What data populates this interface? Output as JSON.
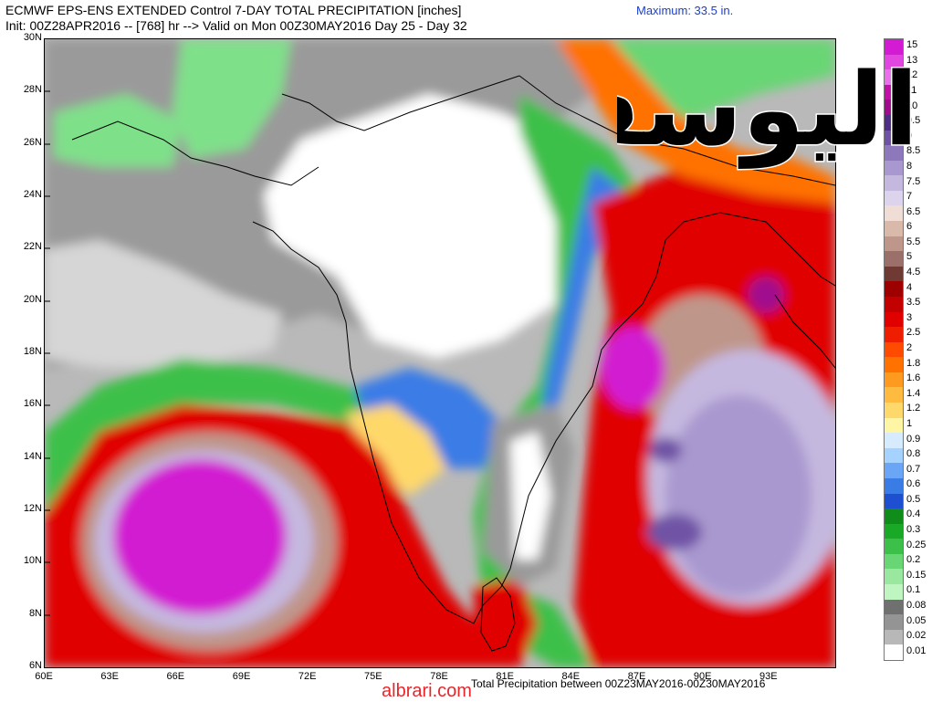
{
  "header": {
    "title_line1": "ECMWF EPS-ENS EXTENDED Control 7-DAY TOTAL PRECIPITATION [inches]",
    "title_line2": "Init: 00Z28APR2016 -- [768] hr --> Valid on Mon 00Z30MAY2016  Day 25 - Day 32",
    "maximum": "Maximum: 33.5 in."
  },
  "map": {
    "latitude_labels": [
      "30N",
      "28N",
      "26N",
      "24N",
      "22N",
      "20N",
      "18N",
      "16N",
      "14N",
      "12N",
      "10N",
      "8N",
      "6N"
    ],
    "latitude_values": [
      30,
      28,
      26,
      24,
      22,
      20,
      18,
      16,
      14,
      12,
      10,
      8,
      6
    ],
    "longitude_labels": [
      "60E",
      "63E",
      "66E",
      "69E",
      "72E",
      "75E",
      "78E",
      "81E",
      "84E",
      "87E",
      "90E",
      "93E"
    ],
    "longitude_values": [
      60,
      63,
      66,
      69,
      72,
      75,
      78,
      81,
      84,
      87,
      90,
      93
    ],
    "extent": {
      "lon_min": 60,
      "lon_max": 96,
      "lat_min": 6,
      "lat_max": 30
    },
    "bottom_note": "Total Precipitation between 00Z23MAY2016-00Z30MAY2016"
  },
  "legend": {
    "labels": [
      "15",
      "13",
      "12",
      "11",
      "10",
      "9.5",
      "9",
      "8.5",
      "8",
      "7.5",
      "7",
      "6.5",
      "6",
      "5.5",
      "5",
      "4.5",
      "4",
      "3.5",
      "3",
      "2.5",
      "2",
      "1.8",
      "1.6",
      "1.4",
      "1.2",
      "1",
      "0.9",
      "0.8",
      "0.7",
      "0.6",
      "0.5",
      "0.4",
      "0.3",
      "0.25",
      "0.2",
      "0.15",
      "0.1",
      "0.08",
      "0.05",
      "0.02",
      "0.01"
    ],
    "colors": [
      "#d21bd2",
      "#e146e1",
      "#ea6fea",
      "#c20fa7",
      "#a00b8e",
      "#4e2d87",
      "#6f52a5",
      "#8c78bb",
      "#a998cf",
      "#c5b8df",
      "#dcd3ec",
      "#f0ddd5",
      "#d9b9aa",
      "#bf968a",
      "#9c706a",
      "#6f3a34",
      "#9e0000",
      "#c20000",
      "#e00000",
      "#f01e00",
      "#ff4b00",
      "#ff7200",
      "#ff9a20",
      "#ffba40",
      "#ffd86b",
      "#fff6a5",
      "#d7ebff",
      "#a6d2ff",
      "#6aa6f5",
      "#3a7ce6",
      "#1f4fd1",
      "#0f8c19",
      "#19a926",
      "#3cc04a",
      "#69d675",
      "#9ae89f",
      "#bff5c0",
      "#707070",
      "#949494",
      "#b8b8b8",
      "#ffffff"
    ]
  },
  "watermark": "albrari.com",
  "logo_text": "اليوسفي"
}
